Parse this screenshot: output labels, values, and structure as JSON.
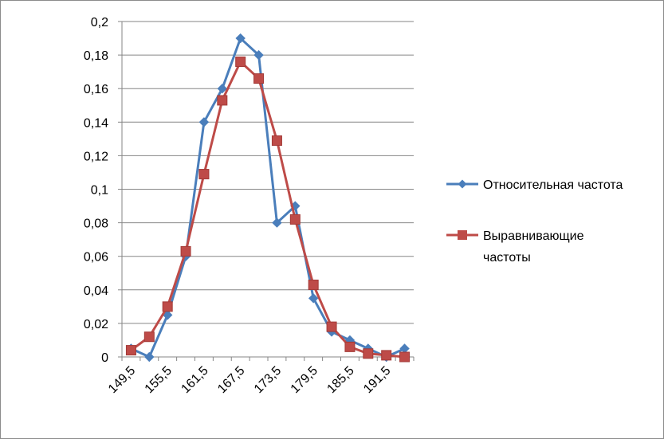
{
  "chart_data": {
    "type": "line",
    "title": "",
    "xlabel": "",
    "ylabel": "",
    "ylim": [
      0,
      0.2
    ],
    "y_ticks": [
      "0",
      "0,02",
      "0,04",
      "0,06",
      "0,08",
      "0,1",
      "0,12",
      "0,14",
      "0,16",
      "0,18",
      "0,2"
    ],
    "y_tick_values": [
      0,
      0.02,
      0.04,
      0.06,
      0.08,
      0.1,
      0.12,
      0.14,
      0.16,
      0.18,
      0.2
    ],
    "categories": [
      "149,5",
      "152,5",
      "155,5",
      "158,5",
      "161,5",
      "164,5",
      "167,5",
      "170,5",
      "173,5",
      "176,5",
      "179,5",
      "182,5",
      "185,5",
      "188,5",
      "191,5",
      "194,5"
    ],
    "x_tick_labels": [
      "149,5",
      "",
      "155,5",
      "",
      "161,5",
      "",
      "167,5",
      "",
      "173,5",
      "",
      "179,5",
      "",
      "185,5",
      "",
      "191,5",
      ""
    ],
    "grid": "horizontal",
    "legend_position": "right",
    "series": [
      {
        "name": "Относительная частота",
        "color": "#4a7ebb",
        "marker": "diamond",
        "values": [
          0.005,
          0.0,
          0.025,
          0.06,
          0.14,
          0.16,
          0.19,
          0.18,
          0.08,
          0.09,
          0.035,
          0.015,
          0.01,
          0.005,
          0.0,
          0.005
        ]
      },
      {
        "name": "Выравнивающие частоты",
        "legend_lines": [
          "Выравнивающие",
          "частоты"
        ],
        "color": "#be4b48",
        "marker": "square",
        "values": [
          0.004,
          0.012,
          0.03,
          0.063,
          0.109,
          0.153,
          0.176,
          0.166,
          0.129,
          0.082,
          0.043,
          0.018,
          0.006,
          0.002,
          0.001,
          0.0
        ]
      }
    ]
  }
}
